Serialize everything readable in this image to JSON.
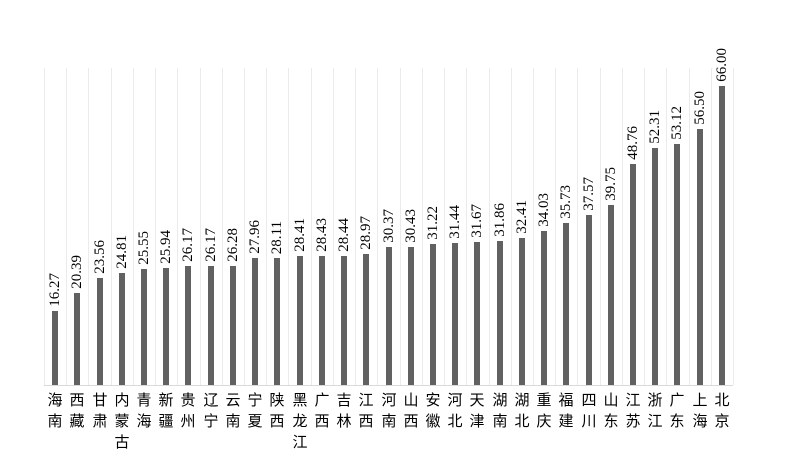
{
  "chart_data": {
    "type": "bar",
    "title": "",
    "xlabel": "",
    "ylabel": "",
    "ylim": [
      0,
      70
    ],
    "grid": "vertical-category-boundary-lines",
    "legend": "none",
    "value_labels_rotated": "90deg-bottom-to-top",
    "bar_color": "#616161",
    "gridline_color": "#ebebeb",
    "axis_line_color": "#d9d9d9",
    "label_color": "#000000",
    "categories": [
      "海南",
      "西藏",
      "甘肃",
      "内蒙古",
      "青海",
      "新疆",
      "贵州",
      "辽宁",
      "云南",
      "宁夏",
      "陕西",
      "黑龙江",
      "广西",
      "吉林",
      "江西",
      "河南",
      "山西",
      "安徽",
      "河北",
      "天津",
      "湖南",
      "湖北",
      "重庆",
      "福建",
      "四川",
      "山东",
      "江苏",
      "浙江",
      "广东",
      "上海",
      "北京"
    ],
    "values": [
      16.27,
      20.39,
      23.56,
      24.81,
      25.55,
      25.94,
      26.17,
      26.17,
      26.28,
      27.96,
      28.11,
      28.41,
      28.43,
      28.44,
      28.97,
      30.37,
      30.43,
      31.22,
      31.44,
      31.67,
      31.86,
      32.41,
      34.03,
      35.73,
      37.57,
      39.75,
      48.76,
      52.31,
      53.12,
      56.5,
      66.0
    ],
    "value_labels": [
      "16.27",
      "20.39",
      "23.56",
      "24.81",
      "25.55",
      "25.94",
      "26.17",
      "26.17",
      "26.28",
      "27.96",
      "28.11",
      "28.41",
      "28.43",
      "28.44",
      "28.97",
      "30.37",
      "30.43",
      "31.22",
      "31.44",
      "31.67",
      "31.86",
      "32.41",
      "34.03",
      "35.73",
      "37.57",
      "39.75",
      "48.76",
      "52.31",
      "53.12",
      "56.50",
      "66.00"
    ]
  }
}
